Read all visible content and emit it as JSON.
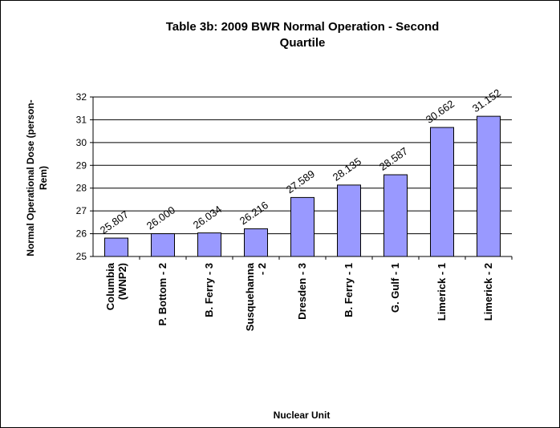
{
  "chart_data": {
    "type": "bar",
    "title": "Table 3b: 2009 BWR Normal Operation - Second Quartile",
    "y_label": "Normal Operational Dose (person-Rem)",
    "x_label": "Nuclear Unit",
    "categories": [
      "Columbia (WNP2)",
      "P. Bottom - 2",
      "B. Ferry - 3",
      "Susquehanna - 2",
      "Dresden - 3",
      "B. Ferry - 1",
      "G. Gulf - 1",
      "Limerick - 1",
      "Limerick - 2"
    ],
    "values": [
      25.807,
      26.0,
      26.034,
      26.216,
      27.589,
      28.135,
      28.587,
      30.662,
      31.152
    ],
    "value_labels": [
      "25.807",
      "26.000",
      "26.034",
      "26.216",
      "27.589",
      "28.135",
      "28.587",
      "30.662",
      "31.152"
    ],
    "color": "#9999ff",
    "ylim": [
      25,
      32
    ],
    "yticks": [
      25,
      26,
      27,
      28,
      29,
      30,
      31,
      32
    ],
    "grid": true
  }
}
